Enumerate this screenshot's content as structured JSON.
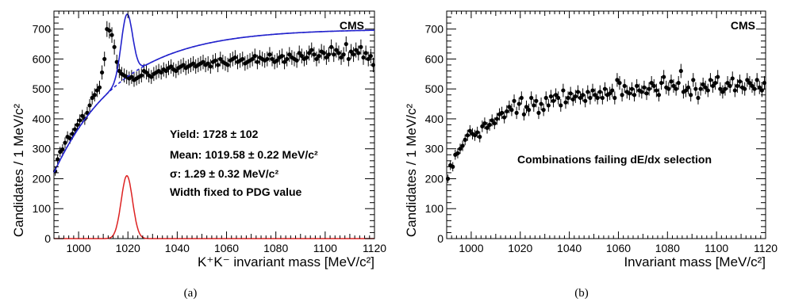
{
  "chart_data": [
    {
      "type": "scatter",
      "panel_caption": "(a)",
      "experiment_label": "CMS",
      "xlabel": "K⁺K⁻ invariant mass  [MeV/c²]",
      "ylabel": "Candidates / 1 MeV/c²",
      "xlim": [
        990,
        1120
      ],
      "ylim": [
        0,
        760
      ],
      "x_ticks": [
        1000,
        1020,
        1040,
        1060,
        1080,
        1100,
        1120
      ],
      "y_ticks": [
        0,
        100,
        200,
        300,
        400,
        500,
        600,
        700
      ],
      "annotations": [
        "Yield: 1728 ± 102",
        "Mean: 1019.58 ± 0.22 MeV/c²",
        "σ: 1.29 ± 0.32 MeV/c²",
        "Width fixed to PDG value"
      ],
      "series": [
        {
          "kind": "data points with error bars",
          "color": "#000000",
          "y": [
            225,
            265,
            290,
            298,
            320,
            340,
            335,
            350,
            365,
            380,
            395,
            410,
            400,
            420,
            445,
            470,
            480,
            495,
            505,
            555,
            600,
            700,
            695,
            680,
            640,
            590,
            560,
            550,
            545,
            540,
            535,
            540,
            530,
            535,
            540,
            545,
            560,
            555,
            545,
            540,
            550,
            555,
            560,
            555,
            565,
            560,
            570,
            575,
            565,
            560,
            570,
            575,
            580,
            570,
            575,
            580,
            585,
            575,
            580,
            585,
            590,
            580,
            585,
            575,
            590,
            595,
            580,
            600,
            590,
            585,
            580,
            595,
            600,
            605,
            590,
            595,
            600,
            585,
            590,
            595,
            600,
            610,
            590,
            605,
            600,
            595,
            600,
            615,
            600,
            590,
            595,
            605,
            610,
            590,
            600,
            615,
            605,
            600,
            595,
            620,
            610,
            600,
            605,
            620,
            630,
            615,
            600,
            610,
            625,
            620,
            605,
            615,
            640,
            615,
            630,
            620,
            605,
            615,
            650,
            600,
            625,
            615,
            630,
            620,
            640,
            605,
            620,
            600,
            610,
            580
          ]
        },
        {
          "kind": "total fit",
          "color": "#2222cc",
          "style": "solid"
        },
        {
          "kind": "background fit",
          "color": "#2222cc",
          "style": "dashed"
        },
        {
          "kind": "signal fit",
          "color": "#dd2222",
          "style": "solid",
          "peak": 210,
          "mean": 1019.58,
          "sigma": 1.29
        }
      ]
    },
    {
      "type": "scatter",
      "panel_caption": "(b)",
      "experiment_label": "CMS",
      "xlabel": "Invariant mass  [MeV/c²]",
      "ylabel": "Candidates / 1 MeV/c²",
      "xlim": [
        990,
        1120
      ],
      "ylim": [
        0,
        760
      ],
      "x_ticks": [
        1000,
        1020,
        1040,
        1060,
        1080,
        1100,
        1120
      ],
      "y_ticks": [
        0,
        100,
        200,
        300,
        400,
        500,
        600,
        700
      ],
      "annotations": [
        "Combinations failing dE/dx selection"
      ],
      "series": [
        {
          "kind": "data points with error bars",
          "color": "#000000",
          "y": [
            200,
            245,
            240,
            280,
            285,
            300,
            310,
            330,
            345,
            360,
            350,
            345,
            355,
            340,
            375,
            385,
            370,
            380,
            395,
            385,
            400,
            415,
            420,
            405,
            425,
            440,
            430,
            460,
            420,
            450,
            470,
            415,
            440,
            430,
            470,
            445,
            460,
            420,
            450,
            430,
            470,
            445,
            475,
            460,
            480,
            470,
            445,
            495,
            455,
            470,
            485,
            465,
            475,
            490,
            470,
            480,
            460,
            490,
            470,
            495,
            480,
            470,
            490,
            470,
            500,
            480,
            485,
            495,
            470,
            530,
            520,
            480,
            510,
            490,
            485,
            500,
            480,
            510,
            495,
            490,
            505,
            485,
            500,
            520,
            510,
            495,
            480,
            520,
            540,
            505,
            500,
            525,
            510,
            500,
            520,
            560,
            490,
            495,
            505,
            480,
            530,
            500,
            470,
            500,
            515,
            505,
            495,
            530,
            510,
            520,
            540,
            500,
            490,
            500,
            520,
            510,
            535,
            495,
            510,
            525,
            505,
            500,
            530,
            520,
            510,
            500,
            530,
            505,
            495,
            520
          ]
        }
      ]
    }
  ]
}
